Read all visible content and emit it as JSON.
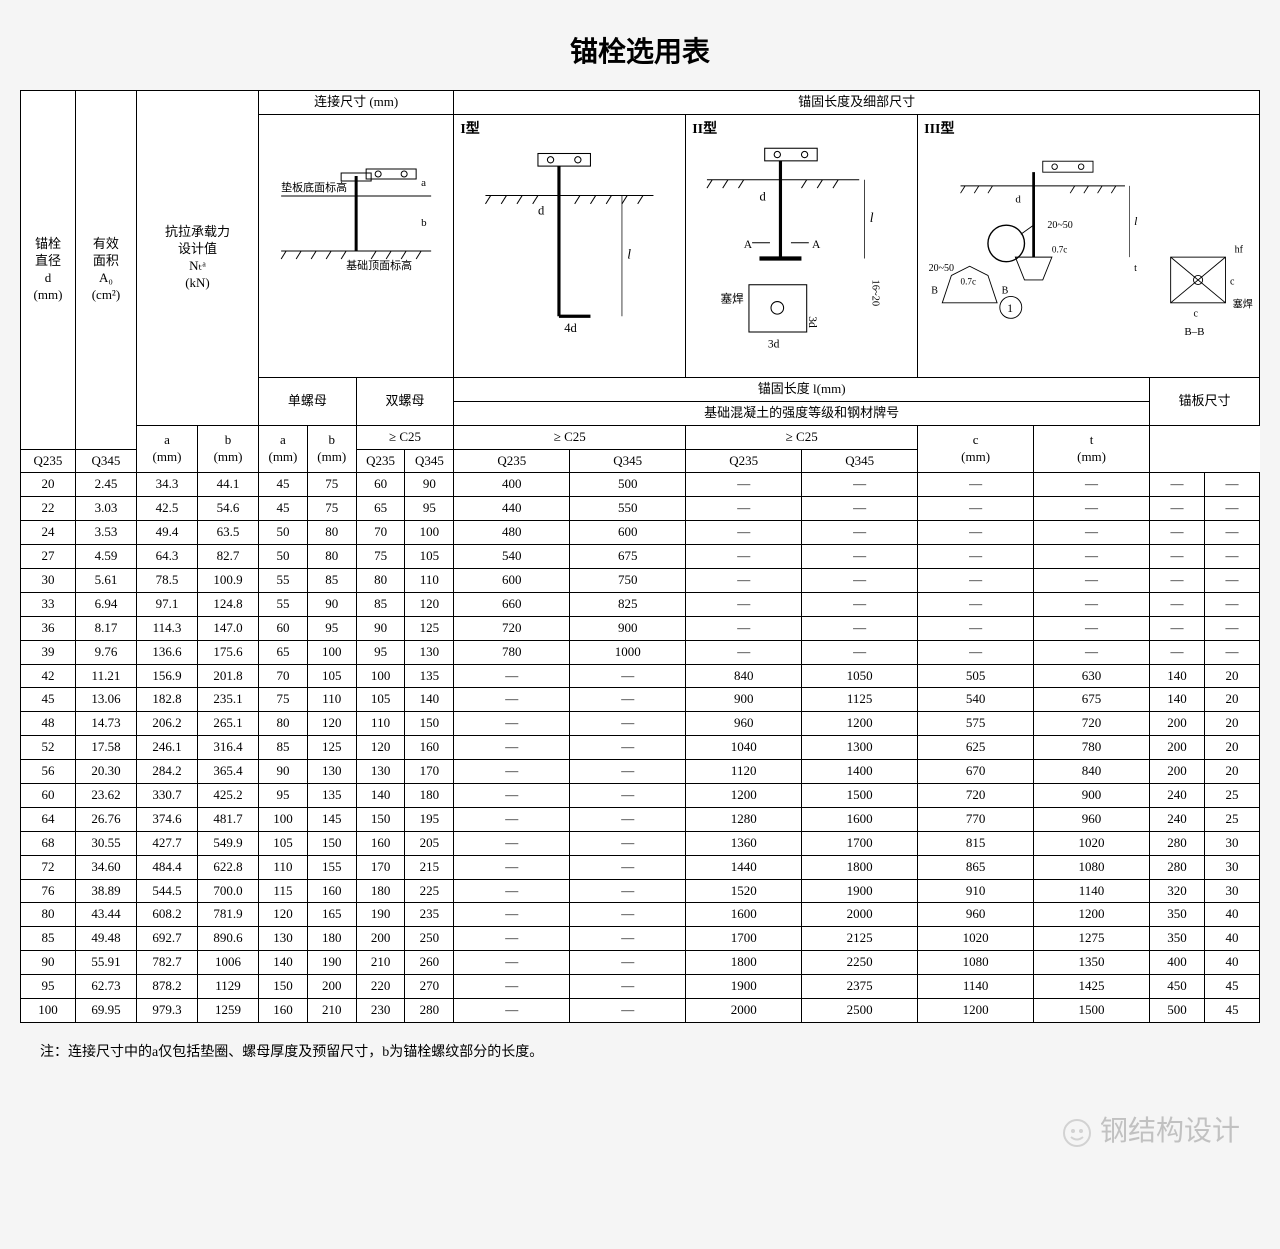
{
  "title": "锚栓选用表",
  "headers": {
    "col_d": "锚栓\n直径\nd\n(mm)",
    "col_a0": "有效\n面积\nA₀\n(cm²)",
    "col_nt": "抗拉承载力\n设计值\nNₜᵃ\n(kN)",
    "grp_conn": "连接尺寸 (mm)",
    "grp_anchor": "锚固长度及细部尺寸",
    "single_nut": "单螺母",
    "double_nut": "双螺母",
    "a_mm": "a\n(mm)",
    "b_mm": "b\n(mm)",
    "q235": "Q235",
    "q345": "Q345",
    "anchor_len": "锚固长度  l(mm)",
    "concrete": "基础混凝土的强度等级和钢材牌号",
    "c25": "≥ C25",
    "plate": "锚板尺寸",
    "c_mm": "c\n(mm)",
    "t_mm": "t\n(mm)",
    "type1": "I型",
    "type2": "II型",
    "type3": "III型",
    "diag_label1": "垫板底面标高",
    "diag_label2": "基础顶面标高"
  },
  "rows": [
    {
      "d": "20",
      "a0": "2.45",
      "nt235": "34.3",
      "nt345": "44.1",
      "sa": "45",
      "sb": "75",
      "da": "60",
      "db": "90",
      "l1_235": "400",
      "l1_345": "500",
      "l2_235": "—",
      "l2_345": "—",
      "l3_235": "—",
      "l3_345": "—",
      "c": "—",
      "t": "—"
    },
    {
      "d": "22",
      "a0": "3.03",
      "nt235": "42.5",
      "nt345": "54.6",
      "sa": "45",
      "sb": "75",
      "da": "65",
      "db": "95",
      "l1_235": "440",
      "l1_345": "550",
      "l2_235": "—",
      "l2_345": "—",
      "l3_235": "—",
      "l3_345": "—",
      "c": "—",
      "t": "—"
    },
    {
      "d": "24",
      "a0": "3.53",
      "nt235": "49.4",
      "nt345": "63.5",
      "sa": "50",
      "sb": "80",
      "da": "70",
      "db": "100",
      "l1_235": "480",
      "l1_345": "600",
      "l2_235": "—",
      "l2_345": "—",
      "l3_235": "—",
      "l3_345": "—",
      "c": "—",
      "t": "—"
    },
    {
      "d": "27",
      "a0": "4.59",
      "nt235": "64.3",
      "nt345": "82.7",
      "sa": "50",
      "sb": "80",
      "da": "75",
      "db": "105",
      "l1_235": "540",
      "l1_345": "675",
      "l2_235": "—",
      "l2_345": "—",
      "l3_235": "—",
      "l3_345": "—",
      "c": "—",
      "t": "—"
    },
    {
      "d": "30",
      "a0": "5.61",
      "nt235": "78.5",
      "nt345": "100.9",
      "sa": "55",
      "sb": "85",
      "da": "80",
      "db": "110",
      "l1_235": "600",
      "l1_345": "750",
      "l2_235": "—",
      "l2_345": "—",
      "l3_235": "—",
      "l3_345": "—",
      "c": "—",
      "t": "—"
    },
    {
      "d": "33",
      "a0": "6.94",
      "nt235": "97.1",
      "nt345": "124.8",
      "sa": "55",
      "sb": "90",
      "da": "85",
      "db": "120",
      "l1_235": "660",
      "l1_345": "825",
      "l2_235": "—",
      "l2_345": "—",
      "l3_235": "—",
      "l3_345": "—",
      "c": "—",
      "t": "—"
    },
    {
      "d": "36",
      "a0": "8.17",
      "nt235": "114.3",
      "nt345": "147.0",
      "sa": "60",
      "sb": "95",
      "da": "90",
      "db": "125",
      "l1_235": "720",
      "l1_345": "900",
      "l2_235": "—",
      "l2_345": "—",
      "l3_235": "—",
      "l3_345": "—",
      "c": "—",
      "t": "—"
    },
    {
      "d": "39",
      "a0": "9.76",
      "nt235": "136.6",
      "nt345": "175.6",
      "sa": "65",
      "sb": "100",
      "da": "95",
      "db": "130",
      "l1_235": "780",
      "l1_345": "1000",
      "l2_235": "—",
      "l2_345": "—",
      "l3_235": "—",
      "l3_345": "—",
      "c": "—",
      "t": "—"
    },
    {
      "d": "42",
      "a0": "11.21",
      "nt235": "156.9",
      "nt345": "201.8",
      "sa": "70",
      "sb": "105",
      "da": "100",
      "db": "135",
      "l1_235": "—",
      "l1_345": "—",
      "l2_235": "840",
      "l2_345": "1050",
      "l3_235": "505",
      "l3_345": "630",
      "c": "140",
      "t": "20"
    },
    {
      "d": "45",
      "a0": "13.06",
      "nt235": "182.8",
      "nt345": "235.1",
      "sa": "75",
      "sb": "110",
      "da": "105",
      "db": "140",
      "l1_235": "—",
      "l1_345": "—",
      "l2_235": "900",
      "l2_345": "1125",
      "l3_235": "540",
      "l3_345": "675",
      "c": "140",
      "t": "20"
    },
    {
      "d": "48",
      "a0": "14.73",
      "nt235": "206.2",
      "nt345": "265.1",
      "sa": "80",
      "sb": "120",
      "da": "110",
      "db": "150",
      "l1_235": "—",
      "l1_345": "—",
      "l2_235": "960",
      "l2_345": "1200",
      "l3_235": "575",
      "l3_345": "720",
      "c": "200",
      "t": "20"
    },
    {
      "d": "52",
      "a0": "17.58",
      "nt235": "246.1",
      "nt345": "316.4",
      "sa": "85",
      "sb": "125",
      "da": "120",
      "db": "160",
      "l1_235": "—",
      "l1_345": "—",
      "l2_235": "1040",
      "l2_345": "1300",
      "l3_235": "625",
      "l3_345": "780",
      "c": "200",
      "t": "20"
    },
    {
      "d": "56",
      "a0": "20.30",
      "nt235": "284.2",
      "nt345": "365.4",
      "sa": "90",
      "sb": "130",
      "da": "130",
      "db": "170",
      "l1_235": "—",
      "l1_345": "—",
      "l2_235": "1120",
      "l2_345": "1400",
      "l3_235": "670",
      "l3_345": "840",
      "c": "200",
      "t": "20"
    },
    {
      "d": "60",
      "a0": "23.62",
      "nt235": "330.7",
      "nt345": "425.2",
      "sa": "95",
      "sb": "135",
      "da": "140",
      "db": "180",
      "l1_235": "—",
      "l1_345": "—",
      "l2_235": "1200",
      "l2_345": "1500",
      "l3_235": "720",
      "l3_345": "900",
      "c": "240",
      "t": "25"
    },
    {
      "d": "64",
      "a0": "26.76",
      "nt235": "374.6",
      "nt345": "481.7",
      "sa": "100",
      "sb": "145",
      "da": "150",
      "db": "195",
      "l1_235": "—",
      "l1_345": "—",
      "l2_235": "1280",
      "l2_345": "1600",
      "l3_235": "770",
      "l3_345": "960",
      "c": "240",
      "t": "25"
    },
    {
      "d": "68",
      "a0": "30.55",
      "nt235": "427.7",
      "nt345": "549.9",
      "sa": "105",
      "sb": "150",
      "da": "160",
      "db": "205",
      "l1_235": "—",
      "l1_345": "—",
      "l2_235": "1360",
      "l2_345": "1700",
      "l3_235": "815",
      "l3_345": "1020",
      "c": "280",
      "t": "30"
    },
    {
      "d": "72",
      "a0": "34.60",
      "nt235": "484.4",
      "nt345": "622.8",
      "sa": "110",
      "sb": "155",
      "da": "170",
      "db": "215",
      "l1_235": "—",
      "l1_345": "—",
      "l2_235": "1440",
      "l2_345": "1800",
      "l3_235": "865",
      "l3_345": "1080",
      "c": "280",
      "t": "30"
    },
    {
      "d": "76",
      "a0": "38.89",
      "nt235": "544.5",
      "nt345": "700.0",
      "sa": "115",
      "sb": "160",
      "da": "180",
      "db": "225",
      "l1_235": "—",
      "l1_345": "—",
      "l2_235": "1520",
      "l2_345": "1900",
      "l3_235": "910",
      "l3_345": "1140",
      "c": "320",
      "t": "30"
    },
    {
      "d": "80",
      "a0": "43.44",
      "nt235": "608.2",
      "nt345": "781.9",
      "sa": "120",
      "sb": "165",
      "da": "190",
      "db": "235",
      "l1_235": "—",
      "l1_345": "—",
      "l2_235": "1600",
      "l2_345": "2000",
      "l3_235": "960",
      "l3_345": "1200",
      "c": "350",
      "t": "40"
    },
    {
      "d": "85",
      "a0": "49.48",
      "nt235": "692.7",
      "nt345": "890.6",
      "sa": "130",
      "sb": "180",
      "da": "200",
      "db": "250",
      "l1_235": "—",
      "l1_345": "—",
      "l2_235": "1700",
      "l2_345": "2125",
      "l3_235": "1020",
      "l3_345": "1275",
      "c": "350",
      "t": "40"
    },
    {
      "d": "90",
      "a0": "55.91",
      "nt235": "782.7",
      "nt345": "1006",
      "sa": "140",
      "sb": "190",
      "da": "210",
      "db": "260",
      "l1_235": "—",
      "l1_345": "—",
      "l2_235": "1800",
      "l2_345": "2250",
      "l3_235": "1080",
      "l3_345": "1350",
      "c": "400",
      "t": "40"
    },
    {
      "d": "95",
      "a0": "62.73",
      "nt235": "878.2",
      "nt345": "1129",
      "sa": "150",
      "sb": "200",
      "da": "220",
      "db": "270",
      "l1_235": "—",
      "l1_345": "—",
      "l2_235": "1900",
      "l2_345": "2375",
      "l3_235": "1140",
      "l3_345": "1425",
      "c": "450",
      "t": "45"
    },
    {
      "d": "100",
      "a0": "69.95",
      "nt235": "979.3",
      "nt345": "1259",
      "sa": "160",
      "sb": "210",
      "da": "230",
      "db": "280",
      "l1_235": "—",
      "l1_345": "—",
      "l2_235": "2000",
      "l2_345": "2500",
      "l3_235": "1200",
      "l3_345": "1500",
      "c": "500",
      "t": "45"
    }
  ],
  "note": "注：连接尺寸中的a仅包括垫圈、螺母厚度及预留尺寸，b为锚栓螺纹部分的长度。",
  "watermark": "钢结构设计"
}
